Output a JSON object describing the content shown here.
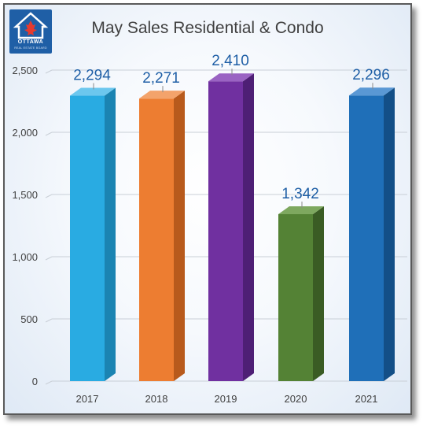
{
  "logo": {
    "name": "OTTAWA",
    "sub": "REAL ESTATE BOARD"
  },
  "chart_data": {
    "type": "bar",
    "title": "May Sales Residential & Condo",
    "xlabel": "",
    "ylabel": "",
    "categories": [
      "2017",
      "2018",
      "2019",
      "2020",
      "2021"
    ],
    "values": [
      2294,
      2271,
      2410,
      1342,
      2296
    ],
    "value_labels": [
      "2,294",
      "2,271",
      "2,410",
      "1,342",
      "2,296"
    ],
    "bar_colors": [
      "#29abe2",
      "#ed7d31",
      "#7030a0",
      "#548235",
      "#1f6fb8"
    ],
    "bar_side_colors": [
      "#1b84b2",
      "#b85a1c",
      "#4e1f75",
      "#3a5c24",
      "#134f87"
    ],
    "bar_top_colors": [
      "#6cc7ee",
      "#f3a36b",
      "#9a63c3",
      "#7ea85f",
      "#5a98d4"
    ],
    "ylim": [
      0,
      2500
    ],
    "yticks": [
      0,
      500,
      1000,
      1500,
      2000,
      2500
    ],
    "ytick_labels": [
      "0",
      "500",
      "1,000",
      "1,500",
      "2,000",
      "2,500"
    ],
    "grid": true,
    "label_color": "#1f5fa6"
  }
}
